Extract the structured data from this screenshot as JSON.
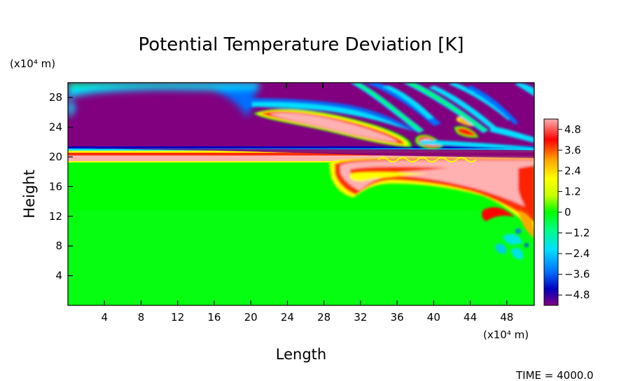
{
  "chart_data": {
    "type": "heatmap",
    "title": "Potential Temperature Deviation [K]",
    "xlabel": "Length",
    "ylabel": "Height",
    "x_unit": "(x10⁴ m)",
    "y_unit": "(x10⁴ m)",
    "xlim": [
      0,
      51
    ],
    "ylim": [
      0,
      30
    ],
    "x_ticks": [
      4,
      8,
      12,
      16,
      20,
      24,
      28,
      32,
      36,
      40,
      44,
      48
    ],
    "y_ticks": [
      4,
      8,
      12,
      16,
      20,
      24,
      28
    ],
    "colorbar": {
      "range": [
        -5.4,
        5.4
      ],
      "tick_values": [
        4.8,
        3.6,
        2.4,
        1.2,
        0,
        -1.2,
        -2.4,
        -3.6,
        -4.8
      ],
      "tick_labels": [
        "4.8",
        "3.6",
        "2.4",
        "1.2",
        "0",
        "−1.2",
        "−2.4",
        "−3.6",
        "−4.8"
      ],
      "colors": [
        "#800080",
        "#0000c0",
        "#0070ff",
        "#00e0ff",
        "#00ff7f",
        "#00ff00",
        "#c8ff00",
        "#ffff00",
        "#ffa500",
        "#ff0000",
        "#ffb0b0"
      ]
    },
    "grid": false,
    "annotation": "TIME = 4000.0"
  }
}
